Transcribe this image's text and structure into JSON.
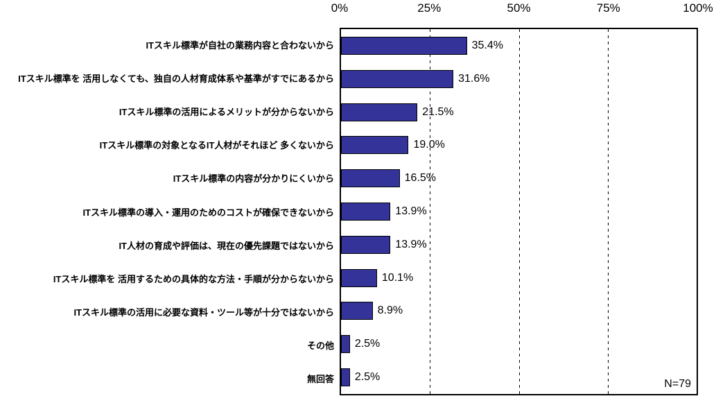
{
  "chart_data": {
    "type": "bar",
    "orientation": "horizontal",
    "title": "",
    "categories": [
      "ITスキル標準が自社の業務内容と合わないから",
      "ITスキル標準を 活用しなくても、独自の人材育成体系や基準がすでにあるから",
      "ITスキル標準の活用によるメリットが分からないから",
      "ITスキル標準の対象となるIT人材がそれほど 多くないから",
      "ITスキル標準の内容が分かりにくいから",
      "ITスキル標準の導入・運用のためのコストが確保できないから",
      "IT人材の育成や評価は、現在の優先課題ではないから",
      "ITスキル標準を 活用するための具体的な方法・手順が分からないから",
      "ITスキル標準の活用に必要な資料・ツール等が十分ではないから",
      "その他",
      "無回答"
    ],
    "values": [
      35.4,
      31.6,
      21.5,
      19.0,
      16.5,
      13.9,
      13.9,
      10.1,
      8.9,
      2.5,
      2.5
    ],
    "value_labels": [
      "35.4%",
      "31.6%",
      "21.5%",
      "19.0%",
      "16.5%",
      "13.9%",
      "13.9%",
      "10.1%",
      "8.9%",
      "2.5%",
      "2.5%"
    ],
    "x_ticks": [
      "0%",
      "25%",
      "50%",
      "75%",
      "100%"
    ],
    "x_tick_values": [
      0,
      25,
      50,
      75,
      100
    ],
    "xlim": [
      0,
      100
    ],
    "gridlines_at": [
      25,
      50,
      75
    ],
    "grid_style": "dashed-vertical",
    "annotation": "N=79",
    "colors": {
      "bar_fill": "#333399",
      "bar_border": "#000000",
      "plot_border": "#000000",
      "grid": "#000000",
      "background": "#ffffff",
      "text": "#000000"
    }
  }
}
